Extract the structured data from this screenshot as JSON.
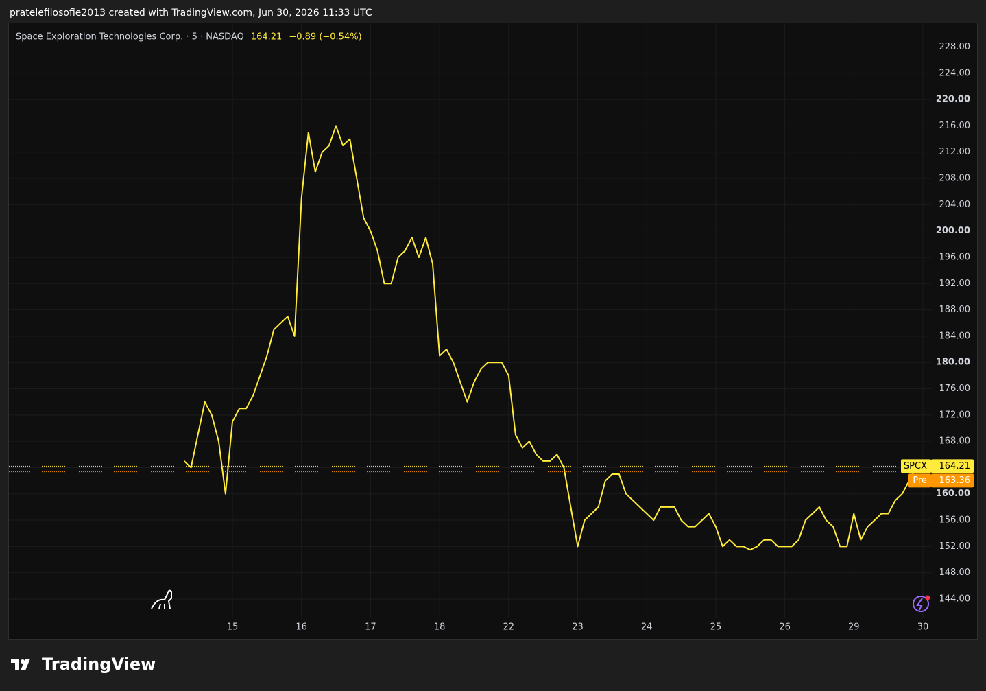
{
  "header": "pratelefilosofie2013 created with TradingView.com, Jun 30, 2026 11:33 UTC",
  "brand": "TradingView",
  "chart_data": {
    "type": "line",
    "legend": {
      "name": "Space Exploration Technologies Corp. · 5 · NASDAQ",
      "price": 164.21,
      "change": "−0.89 (−0.54%)"
    },
    "color": "#ffeb3b",
    "categories": [
      null,
      null,
      null,
      null,
      null,
      null,
      null,
      "15",
      null,
      null,
      null,
      null,
      null,
      null,
      null,
      null,
      null,
      "16",
      null,
      null,
      null,
      null,
      null,
      null,
      null,
      null,
      null,
      "17",
      null,
      null,
      null,
      null,
      null,
      null,
      null,
      null,
      null,
      "18",
      null,
      null,
      null,
      null,
      null,
      null,
      null,
      null,
      null,
      "22",
      null,
      null,
      null,
      null,
      null,
      null,
      null,
      null,
      null,
      "23",
      null,
      null,
      null,
      null,
      null,
      null,
      null,
      null,
      null,
      "24",
      null,
      null,
      null,
      null,
      null,
      null,
      null,
      null,
      null,
      "25",
      null,
      null,
      null,
      null,
      null,
      null,
      null,
      null,
      null,
      "26",
      null,
      null,
      null,
      null,
      null,
      null,
      null,
      null,
      null,
      "29",
      null,
      null,
      null,
      null,
      null,
      null,
      null,
      null,
      null,
      "30"
    ],
    "values": [
      165,
      164,
      169,
      174,
      172,
      168,
      160,
      171,
      173,
      173,
      175,
      178,
      181,
      185,
      186,
      187,
      184,
      205,
      215,
      209,
      212,
      213,
      216,
      213,
      214,
      208,
      202,
      200,
      197,
      192,
      192,
      196,
      197,
      199,
      196,
      199,
      195,
      181,
      182,
      180,
      177,
      174,
      177,
      179,
      180,
      180,
      180,
      178,
      169,
      167,
      168,
      166,
      165,
      165,
      166,
      164,
      158,
      152,
      156,
      157,
      158,
      162,
      163,
      163,
      160,
      159,
      158,
      157,
      156,
      158,
      158,
      158,
      156,
      155,
      155,
      156,
      157,
      155,
      152,
      153,
      152,
      152,
      151.5,
      152,
      153,
      153,
      152,
      152,
      152,
      153,
      156,
      157,
      158,
      156,
      155,
      152,
      152,
      157,
      153,
      155,
      156,
      157,
      157,
      159,
      160,
      162,
      164,
      null
    ],
    "ylim": [
      140,
      231.6
    ],
    "yticks": [
      {
        "value": 144,
        "label": "144.00"
      },
      {
        "value": 148,
        "label": "148.00"
      },
      {
        "value": 152,
        "label": "152.00"
      },
      {
        "value": 156,
        "label": "156.00"
      },
      {
        "value": 160,
        "label": "160.00"
      },
      {
        "value": 164,
        "label": "164.00"
      },
      {
        "value": 168,
        "label": "168.00"
      },
      {
        "value": 172,
        "label": "172.00"
      },
      {
        "value": 176,
        "label": "176.00"
      },
      {
        "value": 180,
        "label": "180.00"
      },
      {
        "value": 184,
        "label": "184.00"
      },
      {
        "value": 188,
        "label": "188.00"
      },
      {
        "value": 192,
        "label": "192.00"
      },
      {
        "value": 196,
        "label": "196.00"
      },
      {
        "value": 200,
        "label": "200.00"
      },
      {
        "value": 204,
        "label": "204.00"
      },
      {
        "value": 208,
        "label": "208.00"
      },
      {
        "value": 212,
        "label": "212.00"
      },
      {
        "value": 216,
        "label": "216.00"
      },
      {
        "value": 220,
        "label": "220.00"
      },
      {
        "value": 224,
        "label": "224.00"
      },
      {
        "value": 228,
        "label": "228.00"
      }
    ],
    "grid": true,
    "price_lines": [
      {
        "name": "SPCX",
        "value": 164.21,
        "color": "#ffeb3b"
      },
      {
        "name": "Pre",
        "value": 163.36,
        "color": "#ff9800"
      }
    ]
  }
}
